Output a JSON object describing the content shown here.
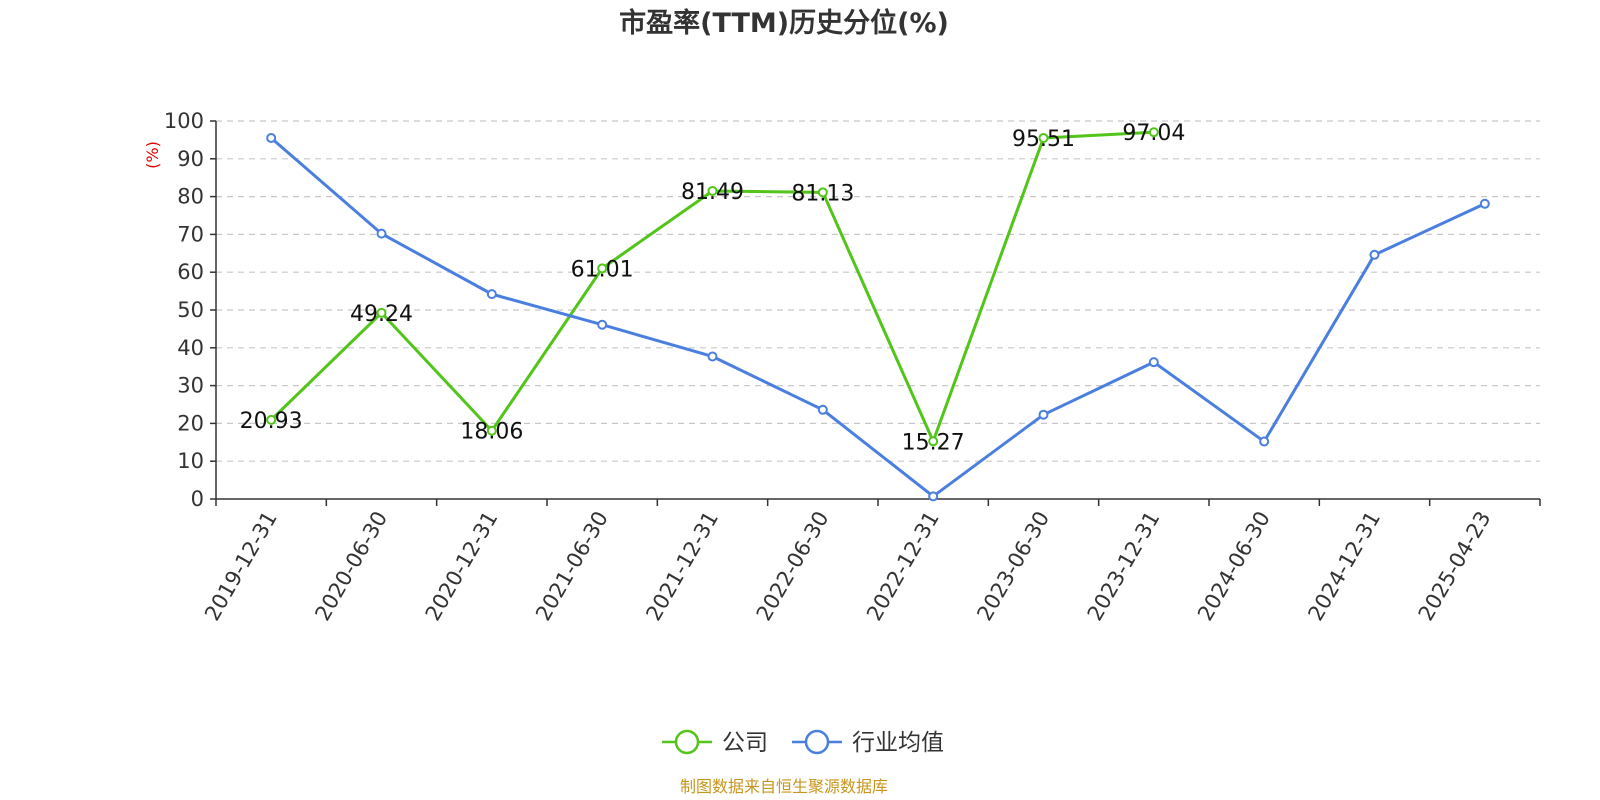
{
  "chart_data": {
    "type": "line",
    "title": "市盈率(TTM)历史分位(%)",
    "ylabel": "(%)",
    "ylim": [
      0,
      100
    ],
    "yticks": [
      0,
      10,
      20,
      30,
      40,
      50,
      60,
      70,
      80,
      90,
      100
    ],
    "grid": true,
    "legend_position": "bottom-center",
    "categories": [
      "2019-12-31",
      "2020-06-30",
      "2020-12-31",
      "2021-06-30",
      "2021-12-31",
      "2022-06-30",
      "2022-12-31",
      "2023-06-30",
      "2023-12-31",
      "2024-06-30",
      "2024-12-31",
      "2025-04-23"
    ],
    "series": [
      {
        "name": "公司",
        "color": "#52c41a",
        "show_labels": true,
        "values": [
          20.93,
          49.24,
          18.06,
          61.01,
          81.49,
          81.13,
          15.27,
          95.51,
          97.04,
          null,
          null,
          null
        ]
      },
      {
        "name": "行业均值",
        "color": "#4a7fe0",
        "show_labels": false,
        "values": [
          95.5,
          70.2,
          54.2,
          46.1,
          37.7,
          23.6,
          0.7,
          22.3,
          36.2,
          15.2,
          64.6,
          78.1
        ]
      }
    ],
    "source": "制图数据来自恒生聚源数据库"
  }
}
